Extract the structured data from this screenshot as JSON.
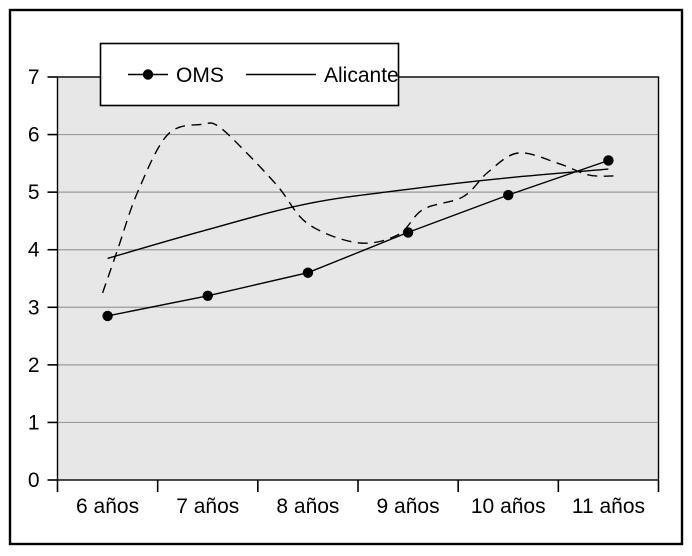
{
  "figure": {
    "background": "#ffffff",
    "border_color": "#000000"
  },
  "chart_data": {
    "type": "line",
    "title": "",
    "xlabel": "",
    "ylabel": "",
    "categories": [
      "6 años",
      "7 años",
      "8 años",
      "9 años",
      "10 años",
      "11 años"
    ],
    "ylim": [
      0,
      7
    ],
    "yticks": [
      "0",
      "1",
      "2",
      "3",
      "4",
      "5",
      "6",
      "7"
    ],
    "grid": true,
    "plot_bg": "#e7e7e7",
    "gridline_color": "#9b9b9b",
    "axis_color": "#000000",
    "line_color": "#000000",
    "legend": {
      "position": "top-left",
      "entries": [
        {
          "label": "OMS",
          "series": "OMS"
        },
        {
          "label": "Alicante",
          "series": "Alicante"
        }
      ]
    },
    "series": [
      {
        "name": "OMS",
        "in_legend": true,
        "line": "solid",
        "marker": "filled-circle",
        "smooth": false,
        "x": [
          6,
          7,
          8,
          9,
          10,
          11
        ],
        "values": [
          2.85,
          3.2,
          3.6,
          4.3,
          4.95,
          5.55
        ]
      },
      {
        "name": "Alicante",
        "in_legend": true,
        "line": "solid",
        "marker": "none",
        "smooth": true,
        "x": [
          6,
          7,
          8,
          9,
          10,
          11
        ],
        "values": [
          3.85,
          4.35,
          4.8,
          5.05,
          5.25,
          5.4
        ]
      },
      {
        "name": "",
        "in_legend": false,
        "line": "dashed",
        "marker": "none",
        "smooth": true,
        "x": [
          5.95,
          6.1,
          6.3,
          6.6,
          6.95,
          7.1,
          7.35,
          7.7,
          8.0,
          8.5,
          8.9,
          9.15,
          9.55,
          9.8,
          10.1,
          10.5,
          10.8,
          11.05
        ],
        "values": [
          3.25,
          4.0,
          5.0,
          6.0,
          6.18,
          6.15,
          5.75,
          5.1,
          4.45,
          4.12,
          4.26,
          4.7,
          4.92,
          5.35,
          5.68,
          5.5,
          5.3,
          5.28
        ]
      }
    ]
  }
}
